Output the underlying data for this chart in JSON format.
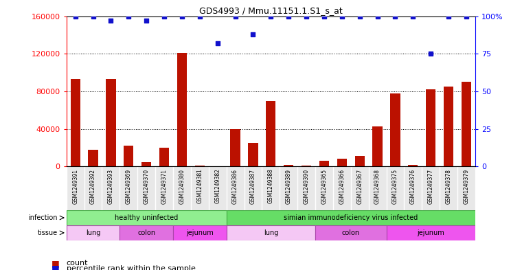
{
  "title": "GDS4993 / Mmu.11151.1.S1_s_at",
  "samples": [
    "GSM1249391",
    "GSM1249392",
    "GSM1249393",
    "GSM1249369",
    "GSM1249370",
    "GSM1249371",
    "GSM1249380",
    "GSM1249381",
    "GSM1249382",
    "GSM1249386",
    "GSM1249387",
    "GSM1249388",
    "GSM1249389",
    "GSM1249390",
    "GSM1249365",
    "GSM1249366",
    "GSM1249367",
    "GSM1249368",
    "GSM1249375",
    "GSM1249376",
    "GSM1249377",
    "GSM1249378",
    "GSM1249379"
  ],
  "counts": [
    93000,
    18000,
    93000,
    22000,
    5000,
    20000,
    121000,
    1000,
    200,
    40000,
    25000,
    70000,
    1500,
    1000,
    6000,
    8000,
    11000,
    43000,
    78000,
    2000,
    82000,
    85000,
    90000
  ],
  "percentiles": [
    100,
    100,
    97,
    100,
    97,
    100,
    100,
    100,
    82,
    100,
    88,
    100,
    100,
    100,
    100,
    100,
    100,
    100,
    100,
    100,
    75,
    100,
    100
  ],
  "infection_groups": [
    {
      "label": "healthy uninfected",
      "start": 0,
      "end": 9,
      "color": "#90ee90"
    },
    {
      "label": "simian immunodeficiency virus infected",
      "start": 9,
      "end": 23,
      "color": "#66dd66"
    }
  ],
  "tissue_groups": [
    {
      "label": "lung",
      "start": 0,
      "end": 3,
      "color": "#f5c8f5"
    },
    {
      "label": "colon",
      "start": 3,
      "end": 6,
      "color": "#e070e0"
    },
    {
      "label": "jejunum",
      "start": 6,
      "end": 9,
      "color": "#ee55ee"
    },
    {
      "label": "lung",
      "start": 9,
      "end": 14,
      "color": "#f5c8f5"
    },
    {
      "label": "colon",
      "start": 14,
      "end": 18,
      "color": "#e070e0"
    },
    {
      "label": "jejunum",
      "start": 18,
      "end": 23,
      "color": "#ee55ee"
    }
  ],
  "bar_color": "#bb1100",
  "dot_color": "#1111cc",
  "ylim_left": [
    0,
    160000
  ],
  "ylim_right": [
    0,
    100
  ],
  "yticks_left": [
    0,
    40000,
    80000,
    120000,
    160000
  ],
  "yticks_right": [
    0,
    25,
    50,
    75,
    100
  ],
  "legend_count_label": "count",
  "legend_percentile_label": "percentile rank within the sample",
  "background_color": "#ffffff"
}
